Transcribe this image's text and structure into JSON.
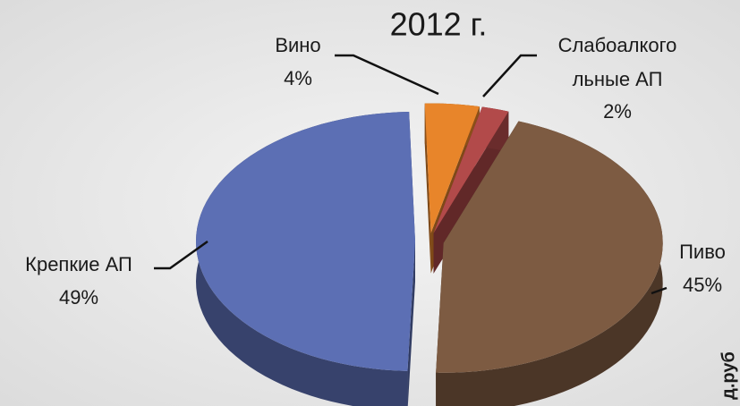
{
  "chart_data": {
    "type": "pie3d",
    "title": "2012 г.",
    "categories": [
      "Пиво",
      "Крепкие АП",
      "Вино",
      "Слабоалкогольные АП"
    ],
    "values": [
      45,
      49,
      4,
      2
    ],
    "value_labels": [
      "45%",
      "49%",
      "4%",
      "2%"
    ],
    "colors": [
      "#7d5b42",
      "#5c6fb4",
      "#e8852a",
      "#b24a4a"
    ],
    "annotation": "д.руб"
  }
}
